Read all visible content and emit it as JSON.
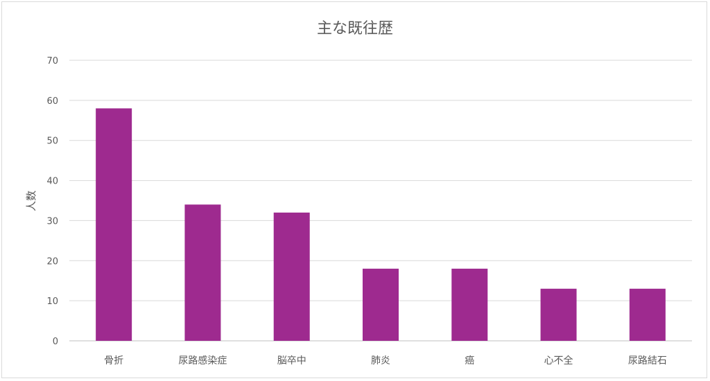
{
  "chart_data": {
    "type": "bar",
    "title": "主な既往歴",
    "xlabel": "",
    "ylabel": "人数",
    "categories": [
      "骨折",
      "尿路感染症",
      "脳卒中",
      "肺炎",
      "癌",
      "心不全",
      "尿路結石"
    ],
    "values": [
      58,
      34,
      32,
      18,
      18,
      13,
      13
    ],
    "ylim": [
      0,
      70
    ],
    "yticks": [
      0,
      10,
      20,
      30,
      40,
      50,
      60,
      70
    ],
    "grid": true,
    "legend": "none",
    "bar_color": "#9e2a8f"
  }
}
